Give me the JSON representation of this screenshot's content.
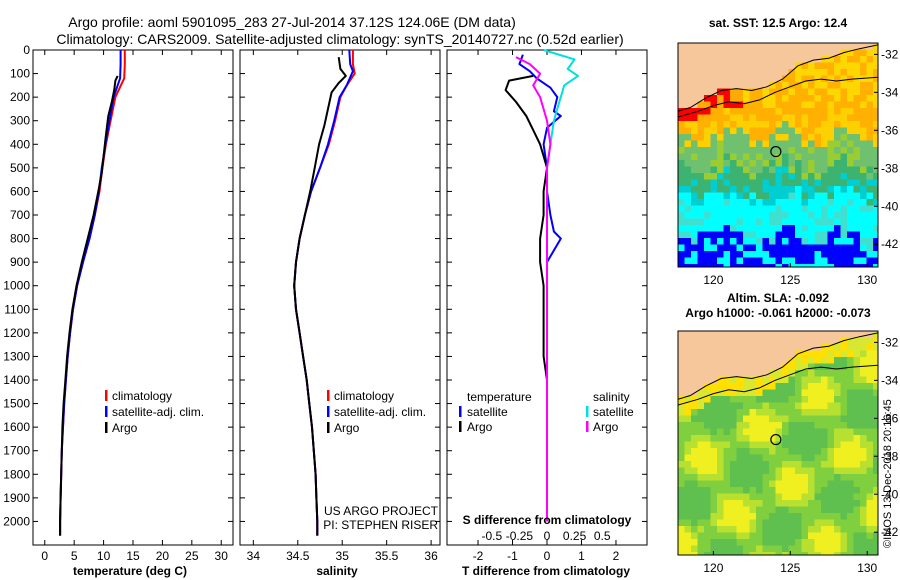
{
  "header": {
    "title_line1": "Argo profile: aoml 5901095_283 27-Jul-2014 37.12S 124.06E (DM data)",
    "title_line2": "Climatology: CARS2009. Satellite-adjusted climatology: synTS_20140727.nc (0.52d earlier)"
  },
  "colors": {
    "climatology": "#ff0000",
    "satellite": "#0000ff",
    "argo": "#000000",
    "salinity_satellite": "#00e0e0",
    "salinity_argo": "#ff00ff",
    "land": "#f7c79c"
  },
  "legends": {
    "temperature": {
      "items": [
        "climatology",
        "satellite-adj. clim.",
        "Argo"
      ]
    },
    "salinity": {
      "items": [
        "climatology",
        "satellite-adj. clim.",
        "Argo"
      ]
    },
    "difference": {
      "left_title": "temperature",
      "left_items": [
        "satellite",
        "Argo"
      ],
      "right_title": "salinity",
      "right_items": [
        "satellite",
        "Argo"
      ]
    }
  },
  "credit": {
    "line1": "US ARGO PROJECT",
    "line2": "PI: STEPHEN RISER"
  },
  "map_sst": {
    "title": "sat. SST: 12.5 Argo: 12.4",
    "xticks": [
      "120",
      "125",
      "130"
    ],
    "yticks": [
      "-32",
      "-34",
      "-36",
      "-38",
      "-40",
      "-42"
    ],
    "float_lon": 124.06,
    "float_lat": -37.12
  },
  "map_sla": {
    "title_line1": "Altim. SLA: -0.092",
    "title_line2": "Argo h1000: -0.061 h2000: -0.073",
    "xticks": [
      "120",
      "125",
      "130"
    ],
    "yticks": [
      "-32",
      "-34",
      "-36",
      "-38",
      "-40",
      "-42"
    ],
    "float_lon": 124.06,
    "float_lat": -37.12
  },
  "side_stamp": "©IMOS 13-Dec-2018 20:16:45",
  "chart_data": [
    {
      "type": "line",
      "xlabel": "temperature (deg C)",
      "xticks": [
        0,
        5,
        10,
        15,
        20,
        25,
        30
      ],
      "xlim": [
        -2,
        32
      ],
      "ylim": [
        2100,
        0
      ],
      "yticks": [
        0,
        100,
        200,
        300,
        400,
        500,
        600,
        700,
        800,
        900,
        1000,
        1100,
        1200,
        1300,
        1400,
        1500,
        1600,
        1700,
        1800,
        1900,
        2000
      ],
      "series": [
        {
          "name": "climatology",
          "points": [
            [
              13.6,
              0
            ],
            [
              13.6,
              60
            ],
            [
              13.5,
              120
            ],
            [
              12.0,
              200
            ],
            [
              11.2,
              300
            ],
            [
              10.4,
              400
            ],
            [
              9.8,
              500
            ],
            [
              9.3,
              600
            ],
            [
              8.5,
              700
            ],
            [
              7.6,
              800
            ],
            [
              6.5,
              900
            ],
            [
              5.5,
              1000
            ],
            [
              4.8,
              1100
            ],
            [
              4.3,
              1200
            ],
            [
              3.9,
              1300
            ],
            [
              3.6,
              1400
            ],
            [
              3.3,
              1500
            ],
            [
              3.1,
              1600
            ],
            [
              2.9,
              1700
            ],
            [
              2.8,
              1800
            ],
            [
              2.7,
              1900
            ],
            [
              2.6,
              2000
            ],
            [
              2.6,
              2060
            ]
          ]
        },
        {
          "name": "satellite-adj. clim.",
          "points": [
            [
              12.9,
              0
            ],
            [
              12.9,
              60
            ],
            [
              12.8,
              120
            ],
            [
              11.7,
              200
            ],
            [
              11.0,
              300
            ],
            [
              10.3,
              400
            ],
            [
              9.7,
              500
            ],
            [
              9.2,
              600
            ],
            [
              8.5,
              700
            ],
            [
              7.6,
              800
            ],
            [
              6.5,
              900
            ],
            [
              5.5,
              1000
            ],
            [
              4.8,
              1100
            ],
            [
              4.3,
              1200
            ],
            [
              3.9,
              1300
            ],
            [
              3.6,
              1400
            ],
            [
              3.3,
              1500
            ],
            [
              3.1,
              1600
            ],
            [
              2.9,
              1700
            ],
            [
              2.8,
              1800
            ],
            [
              2.7,
              1900
            ],
            [
              2.6,
              2000
            ],
            [
              2.6,
              2060
            ]
          ]
        },
        {
          "name": "Argo",
          "points": [
            [
              12.4,
              110
            ],
            [
              12.0,
              130
            ],
            [
              11.8,
              170
            ],
            [
              11.4,
              220
            ],
            [
              10.8,
              280
            ],
            [
              10.6,
              320
            ],
            [
              10.3,
              380
            ],
            [
              10.0,
              450
            ],
            [
              9.7,
              520
            ],
            [
              9.1,
              600
            ],
            [
              8.3,
              700
            ],
            [
              7.3,
              800
            ],
            [
              6.3,
              900
            ],
            [
              5.4,
              1000
            ],
            [
              4.7,
              1100
            ],
            [
              4.2,
              1200
            ],
            [
              3.8,
              1300
            ],
            [
              3.5,
              1400
            ],
            [
              3.2,
              1500
            ],
            [
              3.0,
              1600
            ],
            [
              2.9,
              1700
            ],
            [
              2.8,
              1800
            ],
            [
              2.7,
              1900
            ],
            [
              2.6,
              2000
            ],
            [
              2.6,
              2060
            ]
          ]
        }
      ]
    },
    {
      "type": "line",
      "xlabel": "salinity",
      "xticks": [
        34,
        34.5,
        35,
        35.5,
        36
      ],
      "xticklabels": [
        "34",
        "34.5",
        "35",
        "35.5",
        "36"
      ],
      "xlim": [
        33.85,
        36.1
      ],
      "ylim": [
        2100,
        0
      ],
      "series": [
        {
          "name": "climatology",
          "points": [
            [
              35.12,
              0
            ],
            [
              35.12,
              60
            ],
            [
              35.14,
              100
            ],
            [
              35.05,
              150
            ],
            [
              34.98,
              200
            ],
            [
              34.92,
              300
            ],
            [
              34.85,
              400
            ],
            [
              34.75,
              500
            ],
            [
              34.65,
              600
            ],
            [
              34.58,
              700
            ],
            [
              34.52,
              800
            ],
            [
              34.48,
              900
            ],
            [
              34.46,
              1000
            ],
            [
              34.48,
              1100
            ],
            [
              34.52,
              1200
            ],
            [
              34.56,
              1300
            ],
            [
              34.6,
              1400
            ],
            [
              34.63,
              1500
            ],
            [
              34.66,
              1600
            ],
            [
              34.68,
              1700
            ],
            [
              34.7,
              1800
            ],
            [
              34.71,
              1900
            ],
            [
              34.72,
              2000
            ],
            [
              34.72,
              2060
            ]
          ]
        },
        {
          "name": "satellite-adj. clim.",
          "points": [
            [
              35.08,
              0
            ],
            [
              35.09,
              60
            ],
            [
              35.12,
              90
            ],
            [
              35.05,
              150
            ],
            [
              34.97,
              200
            ],
            [
              34.91,
              300
            ],
            [
              34.84,
              400
            ],
            [
              34.75,
              500
            ],
            [
              34.65,
              600
            ],
            [
              34.58,
              700
            ],
            [
              34.52,
              800
            ],
            [
              34.48,
              900
            ],
            [
              34.46,
              1000
            ],
            [
              34.48,
              1100
            ],
            [
              34.52,
              1200
            ],
            [
              34.56,
              1300
            ],
            [
              34.6,
              1400
            ],
            [
              34.63,
              1500
            ],
            [
              34.66,
              1600
            ],
            [
              34.68,
              1700
            ],
            [
              34.7,
              1800
            ],
            [
              34.71,
              1900
            ],
            [
              34.72,
              2000
            ],
            [
              34.72,
              2060
            ]
          ]
        },
        {
          "name": "Argo",
          "points": [
            [
              34.96,
              30
            ],
            [
              34.98,
              80
            ],
            [
              35.04,
              110
            ],
            [
              34.96,
              140
            ],
            [
              34.88,
              180
            ],
            [
              34.84,
              250
            ],
            [
              34.8,
              320
            ],
            [
              34.74,
              400
            ],
            [
              34.69,
              500
            ],
            [
              34.64,
              600
            ],
            [
              34.58,
              700
            ],
            [
              34.52,
              800
            ],
            [
              34.48,
              900
            ],
            [
              34.46,
              1000
            ],
            [
              34.48,
              1100
            ],
            [
              34.52,
              1200
            ],
            [
              34.56,
              1300
            ],
            [
              34.6,
              1400
            ],
            [
              34.63,
              1500
            ],
            [
              34.66,
              1600
            ],
            [
              34.68,
              1700
            ],
            [
              34.7,
              1800
            ],
            [
              34.71,
              1900
            ],
            [
              34.72,
              2000
            ],
            [
              34.72,
              2060
            ]
          ]
        }
      ]
    },
    {
      "type": "line",
      "xlabel": "T difference from climatology",
      "xticks": [
        -2,
        -1,
        0,
        1,
        2
      ],
      "xlim": [
        -2.9,
        2.9
      ],
      "ylim": [
        2100,
        0
      ],
      "top_axis_label": "S difference from climatology",
      "top_ticks": [
        {
          "x": -1.6,
          "label": "-0.5"
        },
        {
          "x": -0.8,
          "label": "-0.25"
        },
        {
          "x": 0,
          "label": "0"
        },
        {
          "x": 0.8,
          "label": "0.25"
        },
        {
          "x": 1.6,
          "label": "0.5"
        }
      ],
      "series": [
        {
          "name": "temperature satellite",
          "points": [
            [
              -0.7,
              20
            ],
            [
              -0.8,
              60
            ],
            [
              -0.5,
              90
            ],
            [
              -0.3,
              120
            ],
            [
              0.1,
              160
            ],
            [
              0.3,
              200
            ],
            [
              0.2,
              260
            ],
            [
              0.4,
              280
            ],
            [
              0.0,
              330
            ],
            [
              -0.1,
              400
            ],
            [
              0.0,
              500
            ],
            [
              0.0,
              600
            ],
            [
              0.1,
              700
            ],
            [
              0.2,
              770
            ],
            [
              0.4,
              800
            ],
            [
              0.2,
              850
            ],
            [
              0.0,
              900
            ],
            [
              0.0,
              1000
            ],
            [
              0.0,
              1200
            ],
            [
              0.0,
              1400
            ],
            [
              0.0,
              1600
            ],
            [
              0.0,
              1800
            ],
            [
              0.0,
              2000
            ]
          ]
        },
        {
          "name": "temperature Argo",
          "points": [
            [
              -0.4,
              110
            ],
            [
              -1.1,
              130
            ],
            [
              -1.2,
              170
            ],
            [
              -0.9,
              220
            ],
            [
              -0.6,
              280
            ],
            [
              -0.4,
              340
            ],
            [
              -0.2,
              400
            ],
            [
              -0.1,
              450
            ],
            [
              0.0,
              500
            ],
            [
              -0.1,
              600
            ],
            [
              -0.1,
              700
            ],
            [
              -0.2,
              800
            ],
            [
              -0.2,
              900
            ],
            [
              -0.1,
              1000
            ],
            [
              -0.1,
              1100
            ],
            [
              -0.1,
              1200
            ],
            [
              -0.1,
              1300
            ],
            [
              0.0,
              1400
            ],
            [
              0.0,
              1600
            ],
            [
              0.0,
              1800
            ],
            [
              0.0,
              2000
            ]
          ]
        },
        {
          "name": "salinity satellite",
          "points": [
            [
              -0.1,
              0
            ],
            [
              0.8,
              40
            ],
            [
              0.6,
              80
            ],
            [
              0.9,
              110
            ],
            [
              0.5,
              150
            ],
            [
              0.3,
              250
            ],
            [
              0.2,
              300
            ],
            [
              0.1,
              400
            ],
            [
              0.0,
              500
            ],
            [
              0.0,
              600
            ],
            [
              0.0,
              700
            ],
            [
              0.0,
              900
            ],
            [
              0.0,
              1100
            ],
            [
              0.0,
              1300
            ],
            [
              0.0,
              1500
            ],
            [
              0.0,
              1700
            ],
            [
              0.0,
              1900
            ],
            [
              0.0,
              2000
            ]
          ]
        },
        {
          "name": "salinity Argo",
          "points": [
            [
              -0.9,
              30
            ],
            [
              -0.5,
              60
            ],
            [
              -0.2,
              100
            ],
            [
              -0.4,
              150
            ],
            [
              -0.2,
              200
            ],
            [
              0.0,
              300
            ],
            [
              0.1,
              400
            ],
            [
              0.0,
              500
            ],
            [
              0.0,
              600
            ],
            [
              0.0,
              800
            ],
            [
              0.0,
              1000
            ],
            [
              0.0,
              1200
            ],
            [
              0.0,
              1400
            ],
            [
              0.0,
              1600
            ],
            [
              0.0,
              1800
            ],
            [
              0.0,
              2000
            ]
          ]
        }
      ]
    }
  ]
}
